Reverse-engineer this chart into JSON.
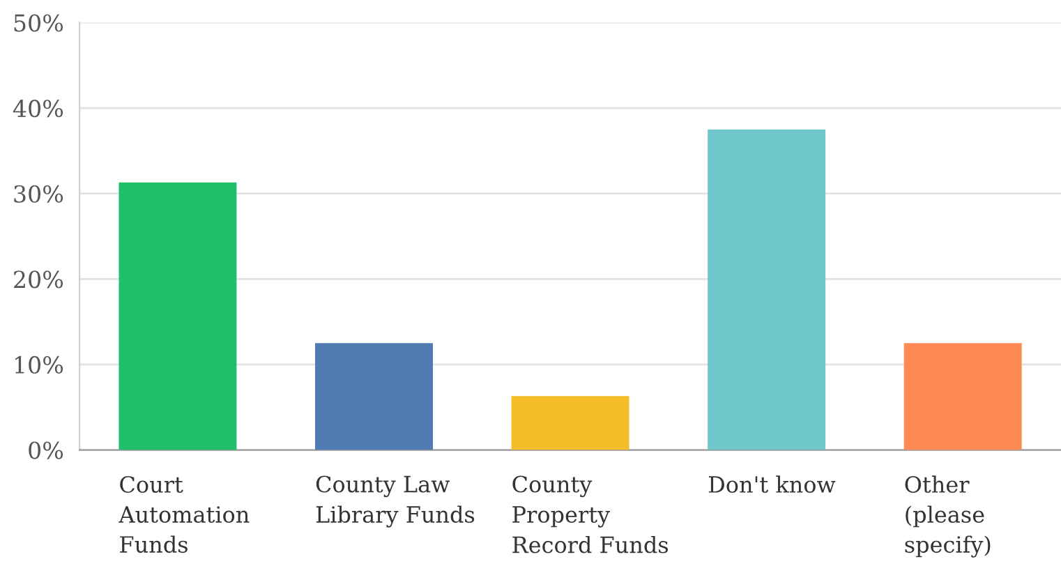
{
  "chart_data": {
    "type": "bar",
    "categories": [
      "Court\nAutomation\nFunds",
      "County Law\nLibrary Funds",
      "County\nProperty\nRecord Funds",
      "Don't know",
      "Other\n(please\nspecify)"
    ],
    "values": [
      31.3,
      12.5,
      6.3,
      37.5,
      12.5
    ],
    "colors": [
      "#20bf6c",
      "#507bb2",
      "#f6bd2b",
      "#6ec8cc",
      "#fd8a53"
    ],
    "ylim": [
      0,
      50
    ],
    "yticks": [
      {
        "value": 0,
        "label": "0%"
      },
      {
        "value": 10,
        "label": "10%"
      },
      {
        "value": 20,
        "label": "20%"
      },
      {
        "value": 30,
        "label": "30%"
      },
      {
        "value": 40,
        "label": "40%"
      },
      {
        "value": 50,
        "label": "50%"
      }
    ],
    "grid": "y"
  }
}
